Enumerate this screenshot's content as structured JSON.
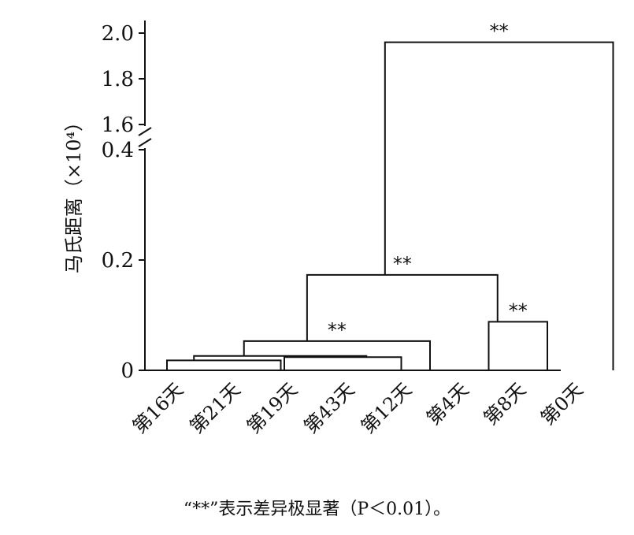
{
  "chart_data": {
    "type": "dendrogram",
    "ylabel": "马氏距离（×10⁴）",
    "yaxis_break": {
      "lower": [
        0,
        0.4
      ],
      "upper": [
        1.6,
        2.0
      ]
    },
    "yticks": [
      {
        "value": 0,
        "label": "0"
      },
      {
        "value": 0.2,
        "label": "0.2"
      },
      {
        "value": 0.4,
        "label": "0.4"
      },
      {
        "value": 1.6,
        "label": "1.6"
      },
      {
        "value": 1.8,
        "label": "1.8"
      },
      {
        "value": 2.0,
        "label": "2.0"
      }
    ],
    "leaves": [
      "第16天",
      "第21天",
      "第19天",
      "第43天",
      "第12天",
      "第4天",
      "第8天",
      "第0天"
    ],
    "merges": [
      {
        "left": "第16天",
        "right": "第21天",
        "height": 0.018,
        "sig": ""
      },
      {
        "left": "第19天",
        "right": "第43天",
        "height": 0.024,
        "sig": ""
      },
      {
        "left": "{第16天,第21天}",
        "right": "{第19天,第43天}",
        "height": 0.026,
        "sig": ""
      },
      {
        "left": "{第16天,第21天,第19天,第43天}",
        "right": "第12天",
        "height": 0.053,
        "sig": "**"
      },
      {
        "left": "第4天",
        "right": "第8天",
        "height": 0.088,
        "sig": "**"
      },
      {
        "left": "{第16天,第21天,第19天,第43天,第12天}",
        "right": "{第4天,第8天}",
        "height": 0.173,
        "sig": "**"
      },
      {
        "left": "{第16天,第21天,第19天,第43天,第12天,第4天,第8天}",
        "right": "第0天",
        "height": 1.96,
        "sig": "**"
      }
    ],
    "grid": false,
    "legend": "none"
  },
  "footnote": "“**”表示差异极显著（P＜0.01）。"
}
